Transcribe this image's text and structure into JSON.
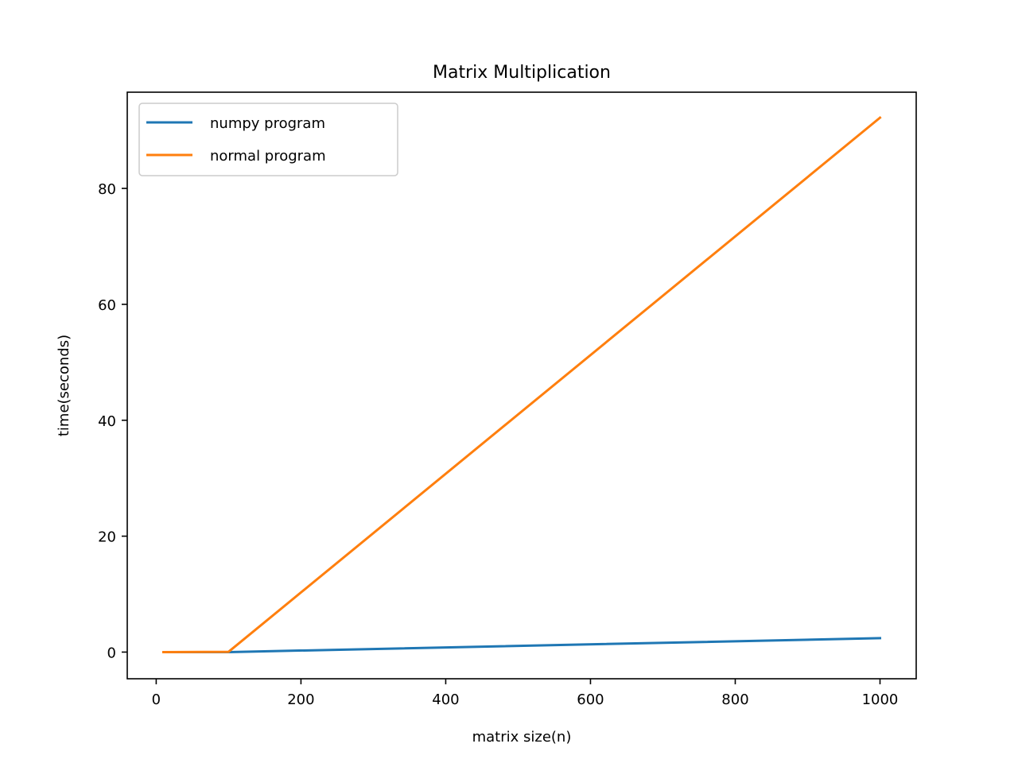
{
  "chart_data": {
    "type": "line",
    "title": "Matrix Multiplication",
    "xlabel": "matrix size(n)",
    "ylabel": "time(seconds)",
    "xlim": [
      -40,
      1050
    ],
    "ylim": [
      -4.6,
      96.6
    ],
    "xticks": [
      0,
      200,
      400,
      600,
      800,
      1000
    ],
    "yticks": [
      0,
      20,
      40,
      60,
      80
    ],
    "grid": false,
    "legend": "upper left",
    "series": [
      {
        "name": "numpy program",
        "color": "#1f77b4",
        "x": [
          10,
          100,
          1000
        ],
        "y": [
          0.0,
          0.0,
          2.4
        ]
      },
      {
        "name": "normal program",
        "color": "#ff7f0e",
        "x": [
          10,
          100,
          1000
        ],
        "y": [
          0.0,
          0.05,
          92.2
        ]
      }
    ]
  }
}
